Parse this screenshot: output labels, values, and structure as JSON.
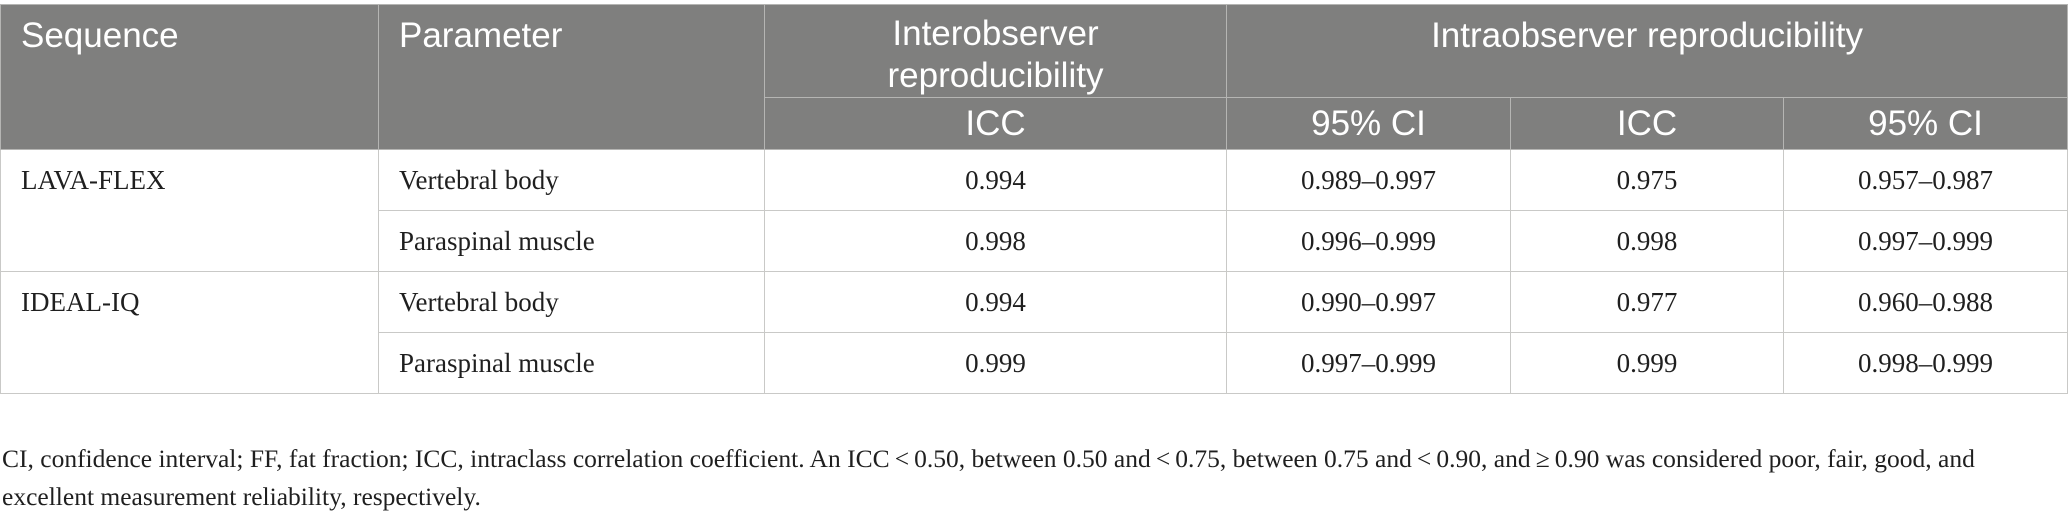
{
  "header": {
    "sequence": "Sequence",
    "parameter": "Parameter",
    "interobserver": "Interobserver reproducibility",
    "intraobserver": "Intraobserver reproducibility",
    "sub": [
      "ICC",
      "95% CI",
      "ICC",
      "95% CI"
    ]
  },
  "groups": [
    {
      "sequence": "LAVA-FLEX",
      "rows": [
        {
          "parameter": "Vertebral body",
          "values": [
            "0.994",
            "0.989–0.997",
            "0.975",
            "0.957–0.987"
          ]
        },
        {
          "parameter": "Paraspinal muscle",
          "values": [
            "0.998",
            "0.996–0.999",
            "0.998",
            "0.997–0.999"
          ]
        }
      ]
    },
    {
      "sequence": "IDEAL-IQ",
      "rows": [
        {
          "parameter": "Vertebral body",
          "values": [
            "0.994",
            "0.990–0.997",
            "0.977",
            "0.960–0.988"
          ]
        },
        {
          "parameter": "Paraspinal muscle",
          "values": [
            "0.999",
            "0.997–0.999",
            "0.999",
            "0.998–0.999"
          ]
        }
      ]
    }
  ],
  "footnote": "CI, confidence interval; FF, fat fraction; ICC, intraclass correlation coefficient. An ICC < 0.50, between 0.50 and < 0.75, between 0.75 and < 0.90, and ≥ 0.90 was considered poor, fair, good, and excellent measurement reliability, respectively."
}
